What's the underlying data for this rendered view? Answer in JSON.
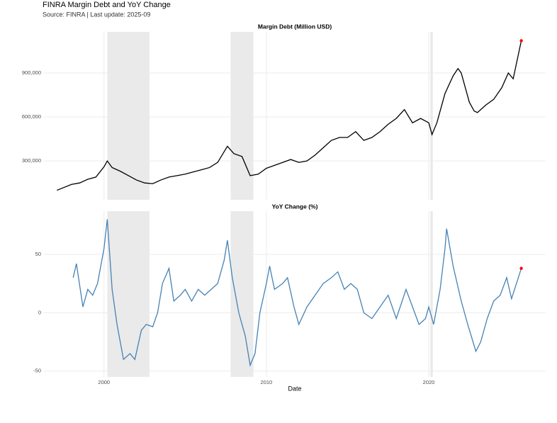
{
  "title": "FINRA Margin Debt and YoY Change",
  "subtitle": "Source: FINRA | Last update: 2025-09",
  "chart_data": [
    {
      "type": "line",
      "title": "Margin Debt (Million USD)",
      "xlim": [
        1996.3,
        2027.2
      ],
      "xticks": [
        2000,
        2010,
        2020
      ],
      "ylim": [
        35000,
        1180000
      ],
      "yticks": [
        {
          "value": 300000,
          "label": "300,000"
        },
        {
          "value": 600000,
          "label": "600,000"
        },
        {
          "value": 900000,
          "label": "900,000"
        }
      ],
      "grid": true,
      "shaded": [
        [
          2000.2,
          2002.8
        ],
        [
          2007.8,
          2009.2
        ],
        [
          2020.1,
          2020.25
        ]
      ],
      "highlight_color": "red",
      "series": [
        {
          "name": "Margin Debt",
          "color": "#000000",
          "x": [
            1997.1,
            1998.0,
            1998.5,
            1999.0,
            1999.5,
            2000.0,
            2000.2,
            2000.5,
            2001.0,
            2001.5,
            2002.0,
            2002.5,
            2003.0,
            2003.5,
            2004.0,
            2004.5,
            2005.0,
            2005.5,
            2006.0,
            2006.5,
            2007.0,
            2007.6,
            2008.0,
            2008.5,
            2009.0,
            2009.5,
            2010.0,
            2010.5,
            2011.0,
            2011.5,
            2012.0,
            2012.5,
            2013.0,
            2013.5,
            2014.0,
            2014.5,
            2015.0,
            2015.5,
            2016.0,
            2016.5,
            2017.0,
            2017.5,
            2018.0,
            2018.5,
            2019.0,
            2019.5,
            2020.0,
            2020.2,
            2020.5,
            2021.0,
            2021.5,
            2021.8,
            2022.0,
            2022.5,
            2022.8,
            2023.0,
            2023.5,
            2024.0,
            2024.5,
            2024.9,
            2025.2,
            2025.7
          ],
          "values": [
            100000,
            140000,
            150000,
            175000,
            190000,
            260000,
            300000,
            255000,
            230000,
            200000,
            170000,
            150000,
            145000,
            170000,
            190000,
            200000,
            210000,
            225000,
            240000,
            255000,
            290000,
            400000,
            350000,
            330000,
            200000,
            210000,
            250000,
            270000,
            290000,
            310000,
            290000,
            300000,
            340000,
            390000,
            440000,
            460000,
            460000,
            500000,
            440000,
            460000,
            500000,
            550000,
            590000,
            650000,
            560000,
            590000,
            560000,
            480000,
            560000,
            760000,
            880000,
            930000,
            900000,
            700000,
            640000,
            630000,
            680000,
            720000,
            800000,
            900000,
            860000,
            1120000
          ]
        }
      ]
    },
    {
      "type": "line",
      "title": "YoY Change (%)",
      "xlabel": "Date",
      "xlim": [
        1996.3,
        2027.2
      ],
      "xticks": [
        2000,
        2010,
        2020
      ],
      "ylim": [
        -55,
        87
      ],
      "yticks": [
        -50,
        0,
        50
      ],
      "grid": true,
      "shaded": [
        [
          2000.2,
          2002.8
        ],
        [
          2007.8,
          2009.2
        ],
        [
          2020.1,
          2020.25
        ]
      ],
      "highlight_color": "red",
      "series": [
        {
          "name": "YoY Change",
          "color": "#4682b4",
          "x": [
            1998.1,
            1998.3,
            1998.7,
            1999.0,
            1999.3,
            1999.6,
            2000.0,
            2000.2,
            2000.5,
            2000.8,
            2001.2,
            2001.6,
            2001.9,
            2002.3,
            2002.6,
            2003.0,
            2003.3,
            2003.6,
            2004.0,
            2004.3,
            2004.7,
            2005.0,
            2005.4,
            2005.8,
            2006.2,
            2006.6,
            2007.0,
            2007.4,
            2007.6,
            2007.9,
            2008.3,
            2008.7,
            2009.0,
            2009.3,
            2009.6,
            2010.0,
            2010.2,
            2010.5,
            2011.0,
            2011.3,
            2011.7,
            2012.0,
            2012.5,
            2013.0,
            2013.5,
            2014.0,
            2014.4,
            2014.8,
            2015.2,
            2015.6,
            2016.0,
            2016.5,
            2017.0,
            2017.5,
            2018.0,
            2018.6,
            2019.0,
            2019.4,
            2019.8,
            2020.0,
            2020.3,
            2020.7,
            2021.0,
            2021.1,
            2021.5,
            2022.0,
            2022.4,
            2022.9,
            2023.2,
            2023.6,
            2024.0,
            2024.4,
            2024.8,
            2025.1,
            2025.7
          ],
          "values": [
            30,
            42,
            5,
            20,
            15,
            25,
            55,
            80,
            20,
            -10,
            -40,
            -35,
            -40,
            -15,
            -10,
            -12,
            0,
            25,
            38,
            10,
            15,
            20,
            10,
            20,
            15,
            20,
            25,
            45,
            62,
            30,
            0,
            -20,
            -45,
            -35,
            0,
            25,
            40,
            20,
            25,
            30,
            5,
            -10,
            5,
            15,
            25,
            30,
            35,
            20,
            25,
            20,
            0,
            -5,
            5,
            15,
            -5,
            20,
            5,
            -10,
            -5,
            5,
            -10,
            20,
            55,
            72,
            40,
            10,
            -10,
            -33,
            -25,
            -5,
            10,
            15,
            30,
            12,
            38
          ]
        }
      ]
    }
  ]
}
